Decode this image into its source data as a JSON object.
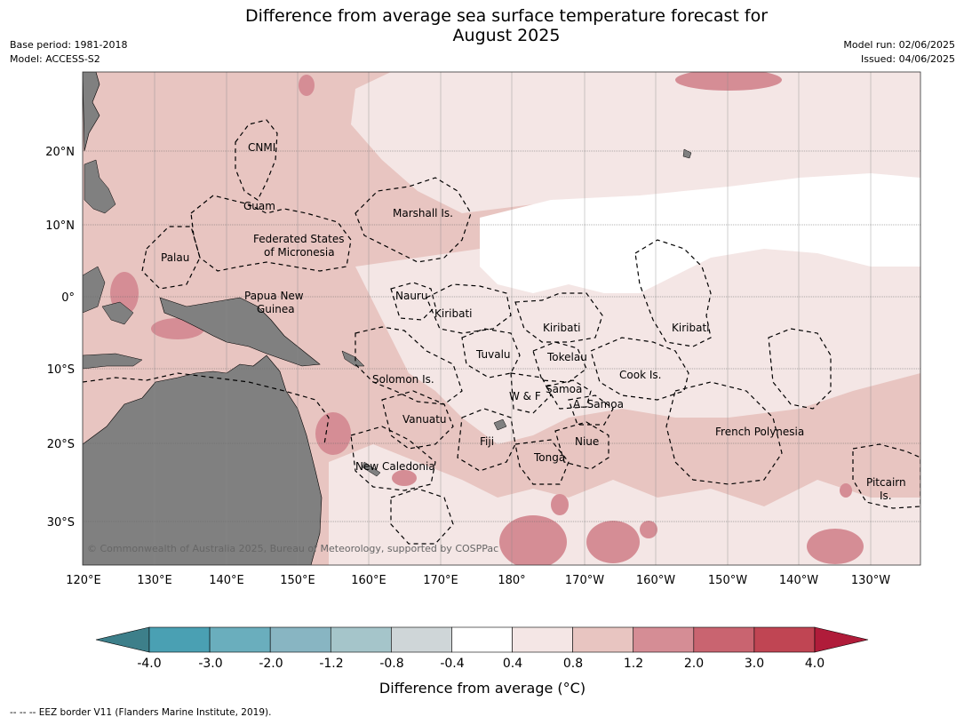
{
  "title_line1": "Difference from average sea surface temperature forecast for",
  "title_line2": "August 2025",
  "meta_left": {
    "base_period": "Base period: 1981-2018",
    "model": "Model: ACCESS-S2"
  },
  "meta_right": {
    "model_run": "Model run: 02/06/2025",
    "issued": "Issued: 04/06/2025"
  },
  "copyright": "© Commonwealth of Australia 2025, Bureau of Meteorology, supported by COSPPac",
  "lat_ticks": [
    "20°N",
    "10°N",
    "0°",
    "10°S",
    "20°S",
    "30°S"
  ],
  "lon_ticks": [
    "120°E",
    "130°E",
    "140°E",
    "150°E",
    "160°E",
    "170°E",
    "180°",
    "170°W",
    "160°W",
    "150°W",
    "140°W",
    "130°W"
  ],
  "region_labels": [
    "CNMI",
    "Guam",
    "Marshall Is.",
    "Federated States",
    "of Micronesia",
    "Palau",
    "Papua New",
    "Guinea",
    "Nauru",
    "Kiribati",
    "Kiribati",
    "Kiribati",
    "Tuvalu",
    "Tokelau",
    "Cook Is.",
    "Solomon Is.",
    "Samoa",
    "W & F",
    "A. Samoa",
    "Vanuatu",
    "Fiji",
    "Niue",
    "French Polynesia",
    "Tonga",
    "New Caledonia",
    "Pitcairn",
    "Is."
  ],
  "colorbar": {
    "ticks": [
      "-4.0",
      "-3.0",
      "-2.0",
      "-1.2",
      "-0.8",
      "-0.4",
      "0.4",
      "0.8",
      "1.2",
      "2.0",
      "3.0",
      "4.0"
    ],
    "colors": [
      "#4aa0b3",
      "#6aaebd",
      "#88b5c2",
      "#a5c5ca",
      "#cfd6d8",
      "#ffffff",
      "#f4e6e5",
      "#e8c5c1",
      "#d58d95",
      "#c96470",
      "#c04553"
    ],
    "under_color": "#3d7f8a",
    "over_color": "#b01c3a",
    "label": "Difference from average (°C)"
  },
  "footer": "-- -- -- EEZ border V11 (Flanders Marine Institute, 2019).",
  "colors": {
    "land": "#808080",
    "ocean_light": "#f4e6e5",
    "ocean_mid": "#e8c5c1",
    "ocean_warm": "#d58d95"
  }
}
